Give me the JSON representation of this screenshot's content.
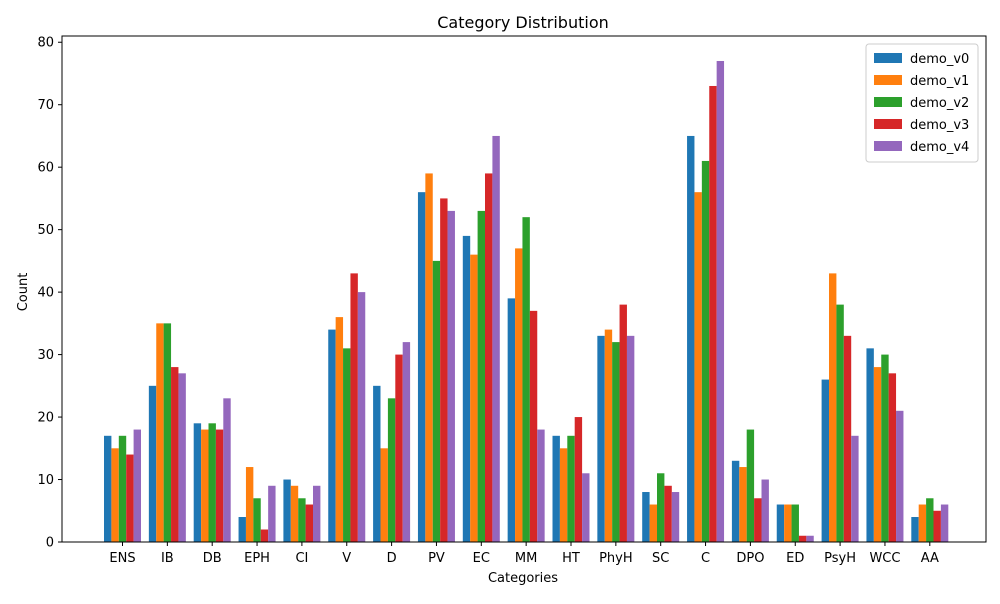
{
  "chart_data": {
    "type": "bar",
    "title": "Category Distribution",
    "xlabel": "Categories",
    "ylabel": "Count",
    "ylim": [
      0,
      81
    ],
    "yticks": [
      0,
      10,
      20,
      30,
      40,
      50,
      60,
      70,
      80
    ],
    "grid": false,
    "legend_position": "top-right",
    "categories": [
      "ENS",
      "IB",
      "DB",
      "EPH",
      "CI",
      "V",
      "D",
      "PV",
      "EC",
      "MM",
      "HT",
      "PhyH",
      "SC",
      "C",
      "DPO",
      "ED",
      "PsyH",
      "WCC",
      "AA"
    ],
    "series": [
      {
        "name": "demo_v0",
        "color": "#1f77b4",
        "values": [
          17,
          25,
          19,
          4,
          10,
          34,
          25,
          56,
          49,
          39,
          17,
          33,
          8,
          65,
          13,
          6,
          26,
          31,
          4
        ]
      },
      {
        "name": "demo_v1",
        "color": "#ff7f0e",
        "values": [
          15,
          35,
          18,
          12,
          9,
          36,
          15,
          59,
          46,
          47,
          15,
          34,
          6,
          56,
          12,
          6,
          43,
          28,
          6
        ]
      },
      {
        "name": "demo_v2",
        "color": "#2ca02c",
        "values": [
          17,
          35,
          19,
          7,
          7,
          31,
          23,
          45,
          53,
          52,
          17,
          32,
          11,
          61,
          18,
          6,
          38,
          30,
          7
        ]
      },
      {
        "name": "demo_v3",
        "color": "#d62728",
        "values": [
          14,
          28,
          18,
          2,
          6,
          43,
          30,
          55,
          59,
          37,
          20,
          38,
          9,
          73,
          7,
          1,
          33,
          27,
          5
        ]
      },
      {
        "name": "demo_v4",
        "color": "#9467bd",
        "values": [
          18,
          27,
          23,
          9,
          9,
          40,
          32,
          53,
          65,
          18,
          11,
          33,
          8,
          77,
          10,
          1,
          17,
          21,
          6
        ]
      }
    ]
  }
}
